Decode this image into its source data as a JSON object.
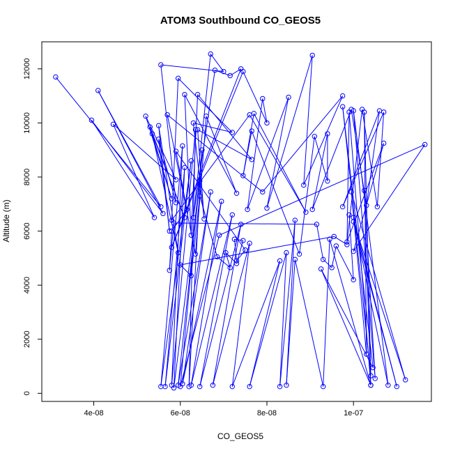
{
  "chart_data": {
    "type": "scatter",
    "title": "ATOM3 Southbound CO_GEOS5",
    "xlabel": "CO_GEOS5",
    "ylabel": "Altitude (m)",
    "xlim": [
      2.8e-08,
      1.18e-07
    ],
    "ylim": [
      -300,
      13000
    ],
    "x_ticks": [
      4e-08,
      6e-08,
      8e-08,
      1e-07
    ],
    "x_tick_labels": [
      "4e-08",
      "6e-08",
      "8e-08",
      "1e-07"
    ],
    "y_ticks": [
      0,
      2000,
      4000,
      6000,
      8000,
      10000,
      12000
    ],
    "y_tick_labels": [
      "0",
      "2000",
      "4000",
      "6000",
      "8000",
      "10000",
      "12000"
    ],
    "grid": false,
    "series": [
      {
        "color": "#0000ff",
        "connected": true,
        "points": [
          [
            3.12e-08,
            11700
          ],
          [
            5.55e-08,
            6900
          ],
          [
            4.1e-08,
            11200
          ],
          [
            5.6e-08,
            6650
          ],
          [
            3.95e-08,
            10100
          ],
          [
            5.4e-08,
            6500
          ],
          [
            4.45e-08,
            9950
          ],
          [
            5.9e-08,
            7900
          ],
          [
            5.2e-08,
            10250
          ],
          [
            5.8e-08,
            7200
          ],
          [
            5.3e-08,
            9850
          ],
          [
            6.1e-08,
            6500
          ],
          [
            5.35e-08,
            9600
          ],
          [
            5.95e-08,
            5200
          ],
          [
            5.5e-08,
            9900
          ],
          [
            5.75e-08,
            6000
          ],
          [
            5.5e-08,
            9400
          ],
          [
            5.9e-08,
            7050
          ],
          [
            5.55e-08,
            12150
          ],
          [
            7e-08,
            11900
          ],
          [
            6.7e-08,
            12550
          ],
          [
            6.3e-08,
            6500
          ],
          [
            6.8e-08,
            11950
          ],
          [
            7.15e-08,
            11750
          ],
          [
            7.4e-08,
            12000
          ],
          [
            5.8e-08,
            5400
          ],
          [
            7.45e-08,
            11900
          ],
          [
            8e-08,
            10000
          ],
          [
            7.9e-08,
            10900
          ],
          [
            7.55e-08,
            6800
          ],
          [
            8.5e-08,
            10950
          ],
          [
            8e-08,
            6850
          ],
          [
            9.05e-08,
            12500
          ],
          [
            8.85e-08,
            7700
          ],
          [
            9.75e-08,
            11000
          ],
          [
            7.9e-08,
            7450
          ],
          [
            5.7e-08,
            10300
          ],
          [
            6.35e-08,
            5150
          ],
          [
            6.6e-08,
            10250
          ],
          [
            7.3e-08,
            7400
          ],
          [
            6.1e-08,
            11050
          ],
          [
            6.25e-08,
            5850
          ],
          [
            6.4e-08,
            11050
          ],
          [
            7.65e-08,
            8650
          ],
          [
            6.4e-08,
            9750
          ],
          [
            6.55e-08,
            6450
          ],
          [
            6.3e-08,
            10000
          ],
          [
            7.2e-08,
            9650
          ],
          [
            5.95e-08,
            11650
          ],
          [
            5.8e-08,
            6400
          ],
          [
            7.6e-08,
            10300
          ],
          [
            8.9e-08,
            6700
          ],
          [
            7.7e-08,
            10350
          ],
          [
            7.45e-08,
            8050
          ],
          [
            7.65e-08,
            9700
          ],
          [
            8.75e-08,
            5150
          ],
          [
            9.1e-08,
            9500
          ],
          [
            9.4e-08,
            7850
          ],
          [
            9.4e-08,
            9600
          ],
          [
            9.05e-08,
            6800
          ],
          [
            9.95e-08,
            10500
          ],
          [
            1.03e-07,
            6950
          ],
          [
            1.06e-07,
            10450
          ],
          [
            9.75e-08,
            6900
          ],
          [
            1.07e-07,
            10400
          ],
          [
            1.055e-07,
            6900
          ],
          [
            1.02e-07,
            10500
          ],
          [
            9.85e-08,
            5600
          ],
          [
            1.07e-07,
            9250
          ],
          [
            1e-07,
            5250
          ],
          [
            1.165e-07,
            9200
          ],
          [
            6.9e-08,
            5850
          ],
          [
            6e-08,
            250
          ],
          [
            6.5e-08,
            9000
          ],
          [
            6.2e-08,
            250
          ],
          [
            6.35e-08,
            9750
          ],
          [
            5.8e-08,
            300
          ],
          [
            6.05e-08,
            9150
          ],
          [
            5.55e-08,
            250
          ],
          [
            6.25e-08,
            8600
          ],
          [
            5.65e-08,
            250
          ],
          [
            6.1e-08,
            8350
          ],
          [
            5.85e-08,
            200
          ],
          [
            6.45e-08,
            7850
          ],
          [
            5.95e-08,
            300
          ],
          [
            6.7e-08,
            7450
          ],
          [
            6.05e-08,
            350
          ],
          [
            6.95e-08,
            7100
          ],
          [
            6.25e-08,
            300
          ],
          [
            7.2e-08,
            6600
          ],
          [
            6.45e-08,
            250
          ],
          [
            7.4e-08,
            6250
          ],
          [
            6.75e-08,
            300
          ],
          [
            7.6e-08,
            5550
          ],
          [
            7.2e-08,
            250
          ],
          [
            8.3e-08,
            4900
          ],
          [
            7.6e-08,
            250
          ],
          [
            8.45e-08,
            5200
          ],
          [
            8.3e-08,
            250
          ],
          [
            8.65e-08,
            6400
          ],
          [
            8.45e-08,
            300
          ],
          [
            8.65e-08,
            4950
          ],
          [
            9.3e-08,
            250
          ],
          [
            9.45e-08,
            5700
          ],
          [
            1.04e-07,
            300
          ],
          [
            1.025e-07,
            7500
          ],
          [
            1.05e-07,
            550
          ],
          [
            1e-07,
            10450
          ],
          [
            1.08e-07,
            300
          ],
          [
            1e-07,
            6500
          ],
          [
            1.1e-07,
            250
          ],
          [
            1e-07,
            6350
          ],
          [
            1.12e-07,
            500
          ],
          [
            9.95e-08,
            7450
          ],
          [
            1.03e-07,
            1450
          ],
          [
            1.025e-07,
            10400
          ],
          [
            1.04e-07,
            650
          ],
          [
            9.75e-08,
            10600
          ],
          [
            1.045e-07,
            950
          ],
          [
            9.25e-08,
            4600
          ],
          [
            1.04e-07,
            300
          ],
          [
            9.9e-08,
            10400
          ],
          [
            9.85e-08,
            5500
          ],
          [
            9.55e-08,
            5800
          ],
          [
            6e-08,
            4750
          ],
          [
            6.25e-08,
            4350
          ],
          [
            6.45e-08,
            7300
          ],
          [
            6.85e-08,
            5050
          ],
          [
            7.15e-08,
            4650
          ],
          [
            7.05e-08,
            5200
          ],
          [
            7.3e-08,
            4800
          ],
          [
            7.45e-08,
            5650
          ],
          [
            7.25e-08,
            5700
          ],
          [
            7.3e-08,
            4900
          ],
          [
            7.5e-08,
            5300
          ],
          [
            5.9e-08,
            8950
          ],
          [
            6.15e-08,
            6800
          ],
          [
            5.8e-08,
            6000
          ],
          [
            5.75e-08,
            4550
          ],
          [
            5.85e-08,
            6300
          ],
          [
            9.15e-08,
            6250
          ],
          [
            9.3e-08,
            4950
          ],
          [
            9.5e-08,
            4650
          ],
          [
            9.6e-08,
            5450
          ],
          [
            1e-07,
            4200
          ],
          [
            9.9e-08,
            6600
          ]
        ]
      }
    ]
  }
}
